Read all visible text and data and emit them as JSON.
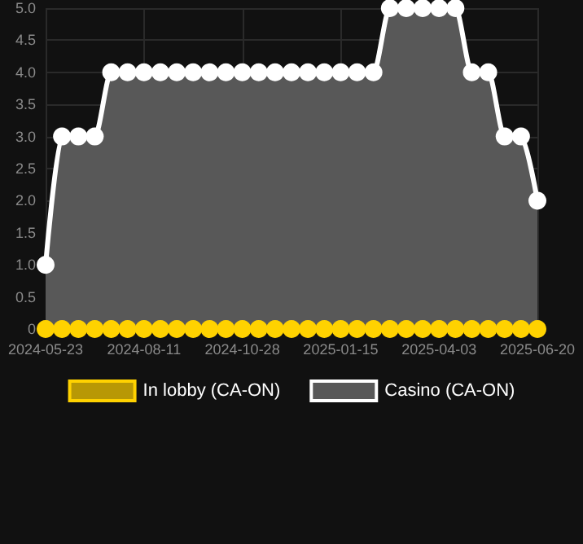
{
  "chart_data": {
    "type": "line",
    "categories": [
      "2024-05-23",
      null,
      null,
      null,
      null,
      null,
      "2024-08-11",
      null,
      null,
      null,
      null,
      null,
      "2024-10-28",
      null,
      null,
      null,
      null,
      null,
      "2025-01-15",
      null,
      null,
      null,
      null,
      null,
      "2025-04-03",
      null,
      null,
      null,
      null,
      null,
      "2025-06-20"
    ],
    "series": [
      {
        "name": "In lobby (CA-ON)",
        "color": "#ffd200",
        "values": [
          0,
          0,
          0,
          0,
          0,
          0,
          0,
          0,
          0,
          0,
          0,
          0,
          0,
          0,
          0,
          0,
          0,
          0,
          0,
          0,
          0,
          0,
          0,
          0,
          0,
          0,
          0,
          0,
          0,
          0,
          0
        ]
      },
      {
        "name": "Casino (CA-ON)",
        "type": "area",
        "color": "#ffffff",
        "values": [
          1,
          3,
          3,
          3,
          4,
          4,
          4,
          4,
          4,
          4,
          4,
          4,
          4,
          4,
          4,
          4,
          4,
          4,
          4,
          4,
          4,
          5,
          5,
          5,
          5,
          5,
          4,
          4,
          3,
          3,
          2
        ]
      }
    ],
    "ylim": [
      0,
      5
    ],
    "yticks": [
      0,
      0.5,
      {
        "value": 1,
        "label": "1.0"
      },
      1.5,
      {
        "value": 2,
        "label": "2.0"
      },
      2.5,
      {
        "value": 3,
        "label": "3.0"
      },
      3.5,
      {
        "value": 4,
        "label": "4.0"
      },
      4.5,
      {
        "value": 5,
        "label": "5.0"
      }
    ],
    "grid": true,
    "legend": "bottom",
    "marker": "circle",
    "line_style": "solid"
  }
}
